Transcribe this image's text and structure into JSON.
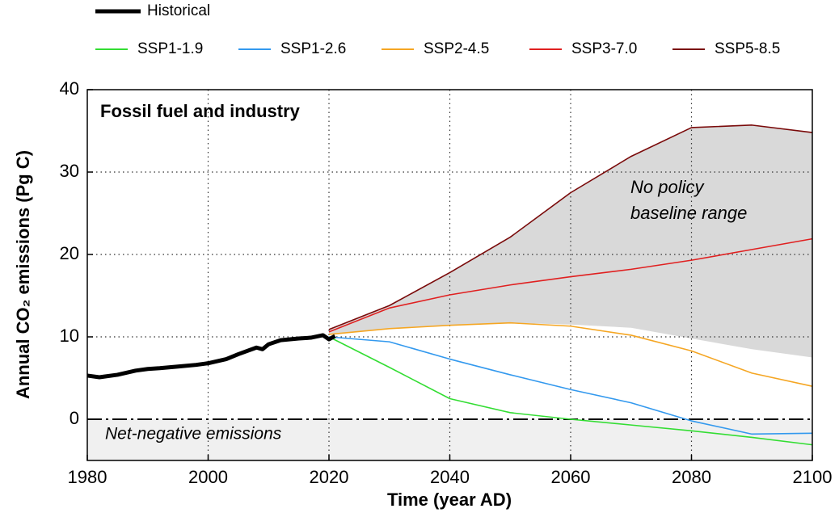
{
  "chart_data": {
    "type": "line",
    "title": "Fossil fuel and industry",
    "xlabel": "Time (year AD)",
    "ylabel": "Annual CO₂ emissions (Pg C)",
    "xlim": [
      1980,
      2100
    ],
    "ylim": [
      -5,
      40
    ],
    "xticks": [
      1980,
      2000,
      2020,
      2040,
      2060,
      2080,
      2100
    ],
    "yticks": [
      0,
      10,
      20,
      30,
      40
    ],
    "grid": true,
    "legend": "top",
    "series": [
      {
        "name": "Historical",
        "color": "#000000",
        "x": [
          1980,
          1982,
          1985,
          1988,
          1990,
          1992,
          1995,
          1998,
          2000,
          2003,
          2005,
          2008,
          2009,
          2010,
          2012,
          2015,
          2017,
          2019,
          2020,
          2021
        ],
        "values": [
          5.3,
          5.1,
          5.4,
          5.9,
          6.1,
          6.2,
          6.4,
          6.6,
          6.8,
          7.3,
          7.9,
          8.7,
          8.5,
          9.1,
          9.6,
          9.8,
          9.9,
          10.2,
          9.7,
          10.1
        ]
      },
      {
        "name": "SSP1-1.9",
        "color": "#33dd33",
        "x": [
          2020,
          2030,
          2040,
          2050,
          2060,
          2070,
          2080,
          2090,
          2100
        ],
        "values": [
          10.0,
          6.3,
          2.5,
          0.8,
          0.0,
          -0.7,
          -1.4,
          -2.2,
          -3.1
        ]
      },
      {
        "name": "SSP1-2.6",
        "color": "#3399ee",
        "x": [
          2020,
          2030,
          2040,
          2050,
          2060,
          2070,
          2080,
          2090,
          2100
        ],
        "values": [
          10.0,
          9.4,
          7.3,
          5.4,
          3.6,
          2.0,
          -0.2,
          -1.8,
          -1.7
        ]
      },
      {
        "name": "SSP2-4.5",
        "color": "#f5a623",
        "x": [
          2020,
          2030,
          2040,
          2050,
          2060,
          2070,
          2080,
          2090,
          2100
        ],
        "values": [
          10.3,
          11.0,
          11.4,
          11.7,
          11.3,
          10.2,
          8.3,
          5.6,
          4.0
        ]
      },
      {
        "name": "SSP3-7.0",
        "color": "#e02020",
        "x": [
          2020,
          2030,
          2040,
          2050,
          2060,
          2070,
          2080,
          2090,
          2100
        ],
        "values": [
          10.6,
          13.5,
          15.1,
          16.3,
          17.3,
          18.2,
          19.3,
          20.6,
          21.9
        ]
      },
      {
        "name": "SSP5-8.5",
        "color": "#7a0a0a",
        "x": [
          2020,
          2030,
          2040,
          2050,
          2060,
          2070,
          2080,
          2090,
          2100
        ],
        "values": [
          10.9,
          13.8,
          17.8,
          22.1,
          27.5,
          31.9,
          35.4,
          35.7,
          34.8
        ]
      }
    ],
    "band": {
      "label": "No policy baseline range",
      "color": "#d9d9d9",
      "x": [
        2020,
        2030,
        2040,
        2050,
        2060,
        2070,
        2080,
        2090,
        2100
      ],
      "lower": [
        10.3,
        11.0,
        11.4,
        11.7,
        11.5,
        11.1,
        9.8,
        8.5,
        7.5
      ],
      "upper": [
        10.9,
        13.8,
        17.8,
        22.1,
        27.5,
        31.9,
        35.4,
        35.7,
        34.8
      ]
    },
    "negative_region": {
      "label": "Net-negative emissions",
      "color": "#f0f0f0"
    }
  }
}
